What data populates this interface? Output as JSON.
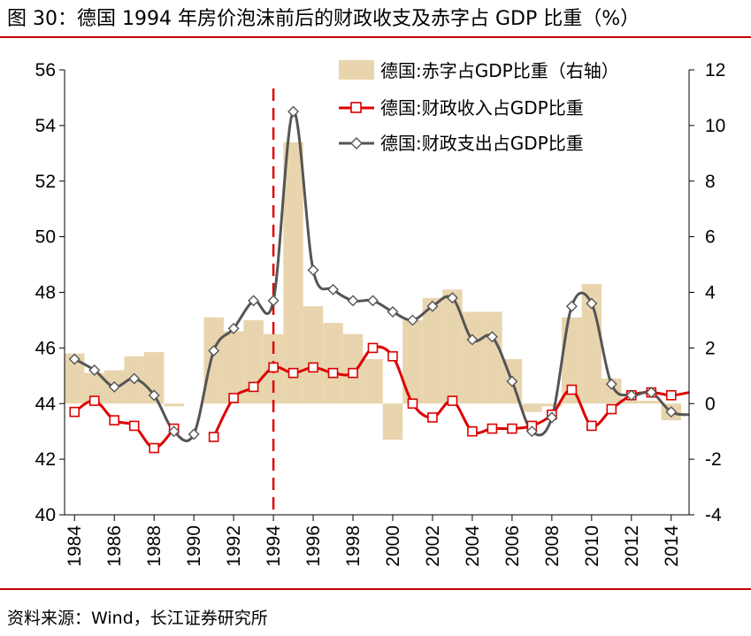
{
  "header": {
    "title": "图 30：德国 1994 年房价泡沫前后的财政收支及赤字占 GDP 比重（%）"
  },
  "footer": {
    "source": "资料来源：Wind，长江证券研究所"
  },
  "colors": {
    "deficit_fill": "#E8D5AE",
    "revenue": "#DD0000",
    "expenditure": "#555555",
    "vline": "#DD0000",
    "rule": "#C00000"
  },
  "chart_data": {
    "type": "combo",
    "title": "德国 1994 年房价泡沫前后的财政收支及赤字占 GDP 比重（%）",
    "x_range": [
      1983.5,
      2014.9
    ],
    "x_ticks": [
      1984,
      1986,
      1988,
      1990,
      1992,
      1994,
      1996,
      1998,
      2000,
      2002,
      2004,
      2006,
      2008,
      2010,
      2012,
      2014
    ],
    "y_left": {
      "min": 40,
      "max": 56,
      "ticks": [
        40,
        42,
        44,
        46,
        48,
        50,
        52,
        54,
        56
      ]
    },
    "y_right": {
      "min": -4,
      "max": 12,
      "ticks": [
        -4,
        -2,
        0,
        2,
        4,
        6,
        8,
        10,
        12
      ]
    },
    "reference_line_x": 1994,
    "series": [
      {
        "name": "德国:赤字占GDP比重（右轴）",
        "type": "area",
        "axis": "right",
        "x": [
          1984,
          1985,
          1986,
          1987,
          1988,
          1989,
          1990,
          1991,
          1992,
          1993,
          1994,
          1995,
          1996,
          1997,
          1998,
          1999,
          2000,
          2001,
          2002,
          2003,
          2004,
          2005,
          2006,
          2007,
          2008,
          2009,
          2010,
          2011,
          2012,
          2013,
          2014
        ],
        "values": [
          1.8,
          1.1,
          1.2,
          1.7,
          1.85,
          -0.1,
          0,
          3.1,
          2.6,
          3.0,
          2.5,
          9.4,
          3.5,
          2.9,
          2.5,
          1.6,
          -1.3,
          3.0,
          3.8,
          4.1,
          3.3,
          3.3,
          1.6,
          -0.3,
          -0.1,
          3.1,
          4.3,
          0.9,
          0.1,
          0.1,
          -0.6
        ]
      },
      {
        "name": "德国:财政收入占GDP比重",
        "type": "line",
        "axis": "left",
        "marker": "square",
        "x": [
          1984,
          1985,
          1986,
          1987,
          1988,
          1989,
          1991,
          1992,
          1993,
          1994,
          1995,
          1996,
          1997,
          1998,
          1999,
          2000,
          2001,
          2002,
          2003,
          2004,
          2005,
          2006,
          2007,
          2008,
          2009,
          2010,
          2011,
          2012,
          2013,
          2014,
          2014.9
        ],
        "values": [
          43.7,
          44.1,
          43.4,
          43.2,
          42.4,
          43.1,
          42.8,
          44.2,
          44.6,
          45.3,
          45.1,
          45.3,
          45.1,
          45.1,
          46.0,
          45.7,
          44.0,
          43.5,
          44.1,
          43.0,
          43.1,
          43.1,
          43.2,
          43.6,
          44.5,
          43.2,
          43.8,
          44.3,
          44.4,
          44.3,
          44.4
        ]
      },
      {
        "name": "德国:财政支出占GDP比重",
        "type": "line",
        "axis": "left",
        "marker": "diamond",
        "x": [
          1984,
          1985,
          1986,
          1987,
          1988,
          1989,
          1990,
          1991,
          1992,
          1993,
          1994,
          1995,
          1996,
          1997,
          1998,
          1999,
          2000,
          2001,
          2002,
          2003,
          2004,
          2005,
          2006,
          2007,
          2008,
          2009,
          2010,
          2011,
          2012,
          2013,
          2014,
          2014.9
        ],
        "values": [
          45.6,
          45.2,
          44.6,
          44.9,
          44.3,
          43.0,
          42.9,
          45.9,
          46.7,
          47.7,
          47.7,
          54.5,
          48.8,
          48.1,
          47.7,
          47.7,
          47.3,
          47.0,
          47.5,
          47.8,
          46.3,
          46.4,
          44.8,
          43.0,
          43.5,
          47.5,
          47.6,
          44.7,
          44.3,
          44.4,
          43.7,
          43.6
        ]
      }
    ],
    "legend_position": "top-right"
  }
}
